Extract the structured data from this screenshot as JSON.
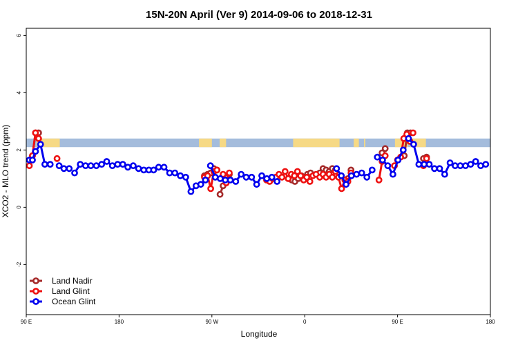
{
  "chart_data": {
    "type": "line",
    "title": "15N-20N April (Ver 9)   2014-09-06 to 2018-12-31",
    "xlabel": "Longitude",
    "ylabel": "XCO2 - MLO trend (ppm)",
    "xlim": [
      90,
      450
    ],
    "ylim": [
      -3.75,
      6.25
    ],
    "x_ticks": [
      {
        "value": 90,
        "label": "90 E"
      },
      {
        "value": 162,
        "label": "180"
      },
      {
        "value": 234,
        "label": "90 W"
      },
      {
        "value": 306,
        "label": "0"
      },
      {
        "value": 378,
        "label": "90 E"
      },
      {
        "value": 450,
        "label": "180"
      }
    ],
    "y_ticks": [
      -2,
      0,
      2,
      4,
      6
    ],
    "y_tick_labels": [
      "-2",
      "0",
      "2",
      "4",
      "6"
    ],
    "legend_position": "bottom-left",
    "background_band": {
      "y_range": [
        2.1,
        2.4
      ],
      "sea_color": "#a4bcdc",
      "land_color": "#f6d985",
      "land_segments_x": [
        [
          98,
          102
        ],
        [
          100,
          116
        ],
        [
          224,
          234
        ],
        [
          240,
          245
        ],
        [
          297,
          333
        ],
        [
          344,
          348
        ],
        [
          352,
          353
        ],
        [
          376,
          386
        ],
        [
          388,
          400
        ]
      ]
    },
    "series": [
      {
        "name": "Land Nadir",
        "color": "#a52a2a",
        "segments": [
          [
            [
              94.8,
              1.8
            ],
            [
              97.2,
              2.6
            ],
            [
              99.6,
              2.6
            ]
          ],
          [
            [
              228.2,
              1.1
            ],
            [
              230.7,
              1.15
            ],
            [
              233.1,
              1.2
            ],
            [
              235.5,
              1.35
            ],
            [
              237.9,
              1.3
            ]
          ],
          [
            [
              240.3,
              0.45
            ],
            [
              242.7,
              0.75
            ],
            [
              245.1,
              0.95
            ],
            [
              247.5,
              1.15
            ]
          ],
          [
            [
              293.6,
              1.0
            ],
            [
              296.0,
              0.95
            ],
            [
              298.4,
              0.9
            ],
            [
              300.9,
              1.0
            ],
            [
              303.3,
              1.1
            ]
          ],
          [
            [
              305.7,
              1.05
            ],
            [
              308.1,
              1.15
            ],
            [
              310.5,
              1.2
            ]
          ],
          [
            [
              317.7,
              1.2
            ],
            [
              320.2,
              1.35
            ],
            [
              322.6,
              1.3
            ],
            [
              325.0,
              1.25
            ],
            [
              327.4,
              1.35
            ],
            [
              329.8,
              1.3
            ]
          ],
          [
            [
              339.5,
              1.0
            ],
            [
              341.9,
              1.3
            ]
          ],
          [
            [
              366.0,
              1.9
            ],
            [
              368.4,
              2.05
            ]
          ],
          [
            [
              383.2,
              1.8
            ],
            [
              385.6,
              2.6
            ],
            [
              388.0,
              2.6
            ]
          ],
          [
            [
              398.1,
              1.7
            ],
            [
              400.5,
              1.75
            ]
          ]
        ]
      },
      {
        "name": "Land Glint",
        "color": "#ee1111",
        "segments": [
          [
            [
              92.4,
              1.45
            ],
            [
              94.8,
              1.8
            ],
            [
              97.2,
              2.6
            ],
            [
              99.6,
              2.4
            ]
          ],
          [
            [
              113.9,
              1.7
            ]
          ],
          [
            [
              228.2,
              1.05
            ],
            [
              230.7,
              1.1
            ],
            [
              233.1,
              0.65
            ],
            [
              235.5,
              1.25
            ],
            [
              237.9,
              1.3
            ]
          ],
          [
            [
              242.7,
              1.15
            ],
            [
              245.1,
              0.85
            ],
            [
              247.5,
              1.2
            ]
          ],
          [
            [
              276.4,
              0.95
            ],
            [
              278.8,
              0.9
            ],
            [
              281.2,
              1.0
            ],
            [
              283.6,
              1.05
            ]
          ],
          [
            [
              286.0,
              1.15
            ],
            [
              288.4,
              1.05
            ],
            [
              290.8,
              1.25
            ],
            [
              293.2,
              1.0
            ],
            [
              295.6,
              1.15
            ],
            [
              298.0,
              1.1
            ],
            [
              300.4,
              1.25
            ],
            [
              302.8,
              1.1
            ]
          ],
          [
            [
              305.2,
              0.95
            ],
            [
              307.6,
              1.05
            ],
            [
              310.0,
              0.9
            ],
            [
              312.4,
              1.1
            ],
            [
              314.8,
              1.15
            ]
          ],
          [
            [
              317.7,
              1.05
            ],
            [
              320.2,
              1.15
            ],
            [
              322.6,
              1.05
            ],
            [
              325.0,
              1.15
            ],
            [
              327.4,
              1.05
            ],
            [
              329.8,
              1.25
            ],
            [
              332.2,
              1.05
            ],
            [
              334.6,
              0.65
            ],
            [
              337.1,
              0.95
            ],
            [
              339.5,
              0.9
            ],
            [
              341.9,
              1.2
            ]
          ],
          [
            [
              363.6,
              0.95
            ],
            [
              366.0,
              1.6
            ],
            [
              368.4,
              1.8
            ]
          ],
          [
            [
              375.6,
              1.45
            ],
            [
              378.0,
              1.65
            ],
            [
              380.4,
              1.75
            ],
            [
              382.8,
              2.4
            ],
            [
              385.2,
              2.55
            ],
            [
              387.6,
              2.3
            ]
          ],
          [
            [
              390.0,
              2.6
            ]
          ],
          [
            [
              398.1,
              1.45
            ],
            [
              400.5,
              1.7
            ]
          ]
        ]
      },
      {
        "name": "Ocean Glint",
        "color": "#0000ee",
        "segments": [
          [
            [
              92.4,
              1.65
            ],
            [
              94.8,
              1.65
            ],
            [
              97.2,
              1.95
            ],
            [
              101.1,
              2.2
            ],
            [
              104.4,
              1.5
            ],
            [
              108.6,
              1.5
            ]
          ],
          [
            [
              115.5,
              1.45
            ],
            [
              119.2,
              1.35
            ],
            [
              123.3,
              1.35
            ]
          ],
          [
            [
              127.5,
              1.2
            ],
            [
              131.9,
              1.5
            ],
            [
              136.0,
              1.45
            ],
            [
              140.1,
              1.45
            ],
            [
              144.4,
              1.45
            ],
            [
              148.5,
              1.5
            ],
            [
              152.4,
              1.6
            ],
            [
              156.8,
              1.45
            ],
            [
              160.9,
              1.5
            ],
            [
              164.9,
              1.5
            ],
            [
              168.8,
              1.4
            ],
            [
              173.0,
              1.45
            ],
            [
              177.1,
              1.35
            ],
            [
              181.2,
              1.3
            ],
            [
              185.1,
              1.3
            ],
            [
              188.8,
              1.3
            ],
            [
              192.7,
              1.4
            ],
            [
              196.9,
              1.4
            ],
            [
              201.2,
              1.2
            ],
            [
              205.3,
              1.2
            ],
            [
              209.5,
              1.1
            ],
            [
              213.7,
              1.05
            ],
            [
              217.7,
              0.55
            ],
            [
              221.7,
              0.75
            ],
            [
              225.4,
              0.8
            ],
            [
              229.0,
              0.95
            ]
          ],
          [
            [
              232.9,
              1.45
            ],
            [
              236.6,
              1.05
            ],
            [
              240.5,
              1.0
            ],
            [
              244.4,
              0.95
            ]
          ],
          [
            [
              248.3,
              0.95
            ],
            [
              252.5,
              0.9
            ],
            [
              256.7,
              1.15
            ],
            [
              260.6,
              1.05
            ],
            [
              264.8,
              1.05
            ],
            [
              268.7,
              0.8
            ],
            [
              272.7,
              1.1
            ]
          ],
          [
            [
              276.6,
              1.0
            ],
            [
              280.5,
              1.05
            ],
            [
              284.5,
              0.9
            ]
          ],
          [
            [
              330.7,
              1.35
            ],
            [
              334.4,
              1.1
            ],
            [
              338.1,
              0.8
            ],
            [
              342.2,
              1.1
            ],
            [
              346.2,
              1.15
            ],
            [
              350.2,
              1.2
            ],
            [
              354.2,
              1.05
            ],
            [
              358.3,
              1.3
            ]
          ],
          [
            [
              362.3,
              1.75
            ],
            [
              366.4,
              1.65
            ],
            [
              370.4,
              1.45
            ],
            [
              374.4,
              1.15
            ],
            [
              378.4,
              1.65
            ],
            [
              382.4,
              2.0
            ]
          ],
          [
            [
              386.5,
              2.4
            ],
            [
              390.5,
              2.2
            ],
            [
              394.5,
              1.5
            ],
            [
              398.6,
              1.5
            ],
            [
              402.6,
              1.5
            ],
            [
              406.6,
              1.35
            ],
            [
              410.6,
              1.35
            ],
            [
              414.6,
              1.15
            ],
            [
              418.7,
              1.55
            ],
            [
              422.7,
              1.45
            ],
            [
              426.7,
              1.45
            ],
            [
              430.7,
              1.45
            ],
            [
              434.7,
              1.5
            ],
            [
              438.6,
              1.6
            ],
            [
              442.5,
              1.45
            ],
            [
              446.4,
              1.5
            ]
          ]
        ]
      }
    ]
  }
}
